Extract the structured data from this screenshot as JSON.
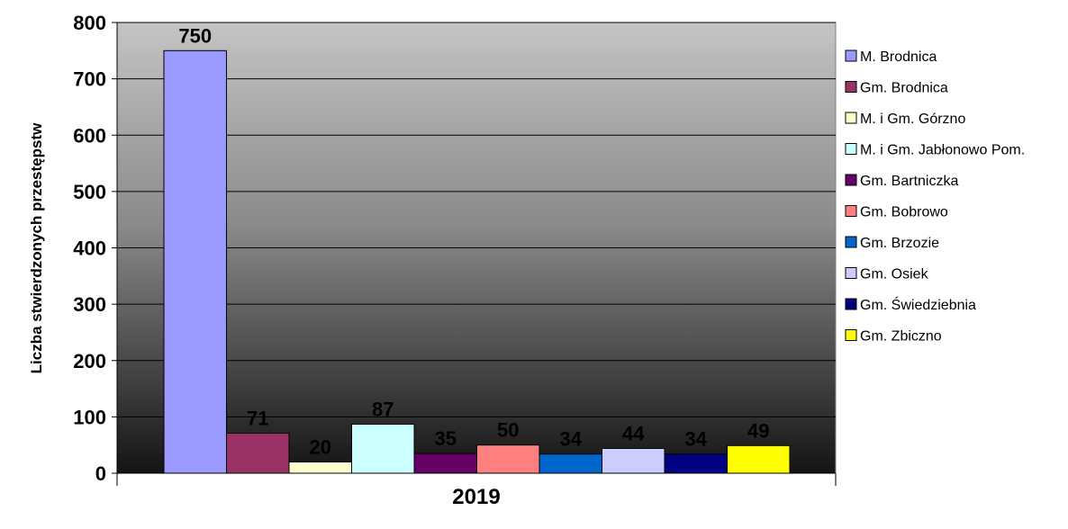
{
  "chart_data": {
    "type": "bar",
    "categories": [
      "2019"
    ],
    "xlabel": "2019",
    "ylabel": "Liczba stwierdzonych przestępstw",
    "ylim": [
      0,
      800
    ],
    "yticks": [
      0,
      100,
      200,
      300,
      400,
      500,
      600,
      700,
      800
    ],
    "grid": true,
    "legend_position": "right",
    "series": [
      {
        "name": "M. Brodnica",
        "values": [
          750
        ],
        "color": "#9999ff"
      },
      {
        "name": "Gm. Brodnica",
        "values": [
          71
        ],
        "color": "#993366"
      },
      {
        "name": "M. i Gm. Górzno",
        "values": [
          20
        ],
        "color": "#ffffcc"
      },
      {
        "name": "M. i Gm. Jabłonowo Pom.",
        "values": [
          87
        ],
        "color": "#ccffff"
      },
      {
        "name": "Gm. Bartniczka",
        "values": [
          35
        ],
        "color": "#660066"
      },
      {
        "name": "Gm. Bobrowo",
        "values": [
          50
        ],
        "color": "#ff8080"
      },
      {
        "name": "Gm. Brzozie",
        "values": [
          34
        ],
        "color": "#0066cc"
      },
      {
        "name": "Gm. Osiek",
        "values": [
          44
        ],
        "color": "#ccccff"
      },
      {
        "name": "Gm. Świedziebnia",
        "values": [
          34
        ],
        "color": "#000080"
      },
      {
        "name": "Gm. Zbiczno",
        "values": [
          49
        ],
        "color": "#ffff00"
      }
    ]
  }
}
